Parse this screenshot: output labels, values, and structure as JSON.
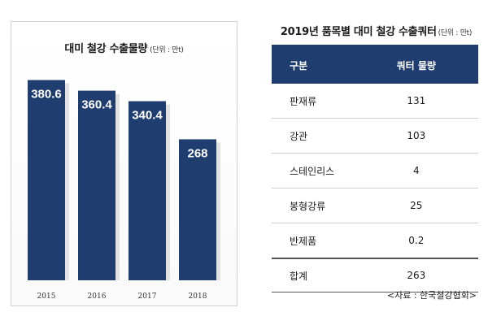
{
  "chart_data": {
    "type": "bar",
    "title": "대미 철강 수출물량",
    "unit_note": "(단위 : 만t)",
    "categories": [
      "2015",
      "2016",
      "2017",
      "2018"
    ],
    "values": [
      380.6,
      360.4,
      340.4,
      268
    ],
    "value_labels": [
      "380.6",
      "360.4",
      "340.4",
      "268"
    ],
    "ylim": [
      0,
      420
    ],
    "xlabel": "",
    "ylabel": "",
    "colors": {
      "bar": "#1f3d6e",
      "shadow": "#e3e3e3",
      "label": "#ffffff"
    }
  },
  "table": {
    "title": "2019년 품목별 대미 철강 수출쿼터",
    "unit_note": "(단위 : 만t)",
    "headers": [
      "구분",
      "쿼터 물량"
    ],
    "rows": [
      [
        "판재류",
        "131"
      ],
      [
        "강관",
        "103"
      ],
      [
        "스테인리스",
        "4"
      ],
      [
        "봉형강류",
        "25"
      ],
      [
        "반제품",
        "0.2"
      ]
    ],
    "total": [
      "합계",
      "263"
    ],
    "header_color": "#1f3d6e"
  },
  "source": "<자료 : 한국철강협회>"
}
